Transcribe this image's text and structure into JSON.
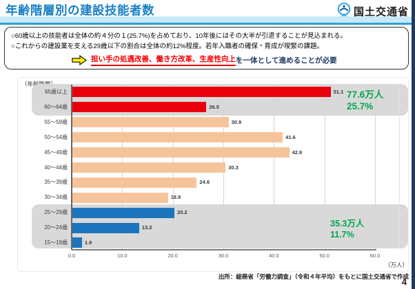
{
  "header": {
    "title": "年齢階層別の建設技能者数",
    "ministry": "国土交通省"
  },
  "summary": {
    "line1": "○60歳以上の技能者は全体の約４分の１(25.7%)を占めており、10年後にはその大半が引退することが見込まれる。",
    "line2": "○これからの建設業を支える29歳以下の割合は全体の約12%程度。若年入職者の確保・育成が喫緊の課題。",
    "line3_highlight": "担い手の処遇改善、働き方改革、生産性向上",
    "line3_rest": "を一体として進めることが必要"
  },
  "chart_data": {
    "type": "bar",
    "orientation": "horizontal",
    "axis_label": "（年齢階層）",
    "unit_label": "（万人）",
    "categories": [
      "65歳以上",
      "60～64歳",
      "55～59歳",
      "50～54歳",
      "45～49歳",
      "40～44歳",
      "35～39歳",
      "30～34歳",
      "25～29歳",
      "20～24歳",
      "15～19歳"
    ],
    "values": [
      51.1,
      26.5,
      30.9,
      41.6,
      42.9,
      30.3,
      24.6,
      18.9,
      20.2,
      13.2,
      1.9
    ],
    "groups": [
      "60plus",
      "60plus",
      "middle",
      "middle",
      "middle",
      "middle",
      "middle",
      "middle",
      "young",
      "young",
      "young"
    ],
    "group_colors": {
      "60plus": "#E8000D",
      "middle": "#F6C49B",
      "young": "#1C75BC"
    },
    "highlight_band_color": "#D9D9D9",
    "x_ticks": [
      "0.0",
      "10.0",
      "20.0",
      "30.0",
      "40.0",
      "50.0",
      "60.0"
    ],
    "xlim": [
      0,
      60
    ],
    "grid": true,
    "annotations": {
      "top": {
        "line1": "77.6万人",
        "line2": "25.7%",
        "applies_to": "60歳以上"
      },
      "bottom": {
        "line1": "35.3万人",
        "line2": "11.7%",
        "applies_to": "29歳以下"
      }
    },
    "annotation_color": "#00A651"
  },
  "footer": {
    "source": "出所：総務省「労働力調査」（令和４年平均）をもとに国土交通省で作成",
    "page": "4"
  }
}
